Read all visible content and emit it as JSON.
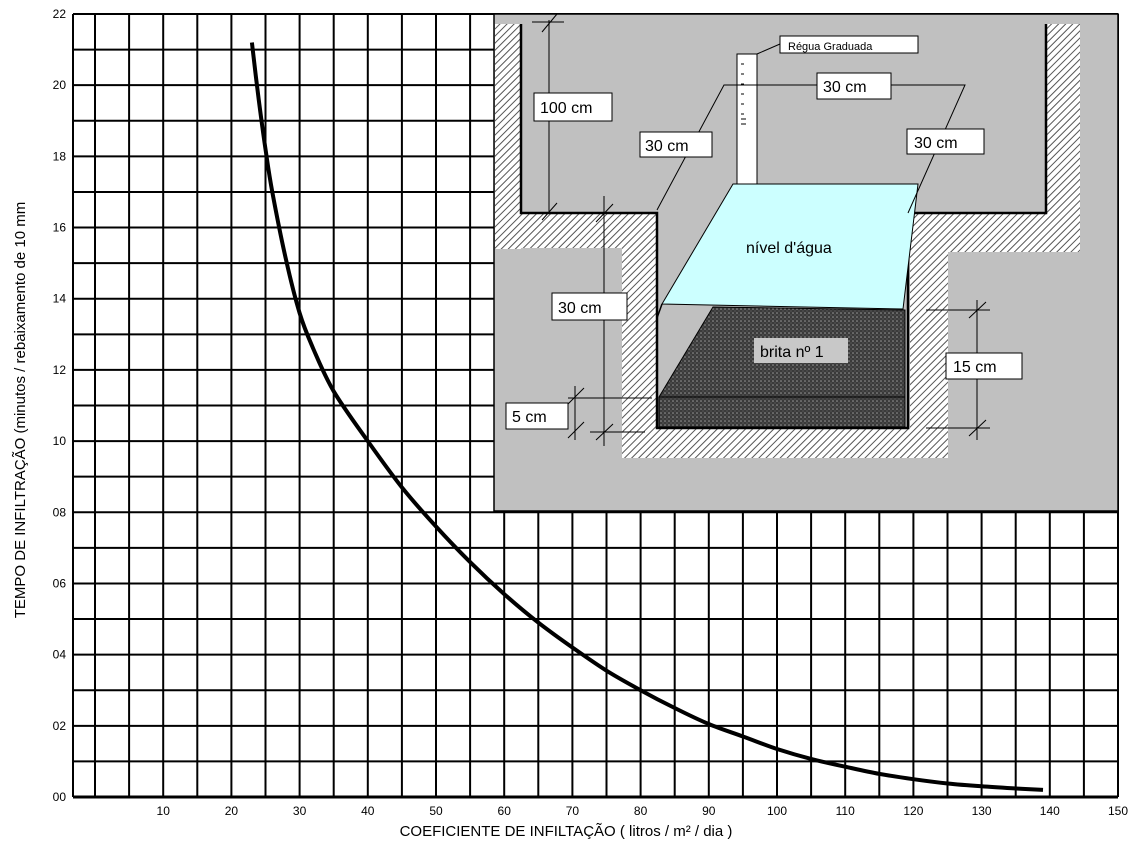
{
  "chart_data": {
    "type": "line",
    "title": "",
    "xlabel": "COEFICIENTE DE  INFILTAÇÃO   ( litros / m² /  dia   )",
    "ylabel": "TEMPO DE INFILTRAÇÃO (minutos / rebaixamento de  10 mm",
    "xlim": [
      0,
      150
    ],
    "ylim": [
      0,
      22
    ],
    "x_ticks": [
      "10",
      "20",
      "30",
      "40",
      "50",
      "60",
      "70",
      "80",
      "90",
      "100",
      "110",
      "120",
      "130",
      "140",
      "150"
    ],
    "y_ticks": [
      "00",
      "02",
      "04",
      "06",
      "08",
      "10",
      "12",
      "14",
      "16",
      "18",
      "20",
      "22"
    ],
    "grid": true,
    "series": [
      {
        "x": [
          23,
          24,
          25,
          26,
          28,
          30,
          32,
          35,
          40,
          45,
          50,
          55,
          60,
          65,
          70,
          75,
          80,
          85,
          90,
          95,
          100,
          105,
          110,
          115,
          120,
          125,
          130,
          135,
          139
        ],
        "values": [
          21.2,
          19.6,
          18.2,
          17.0,
          15.1,
          13.6,
          12.6,
          11.4,
          10.0,
          8.7,
          7.6,
          6.6,
          5.7,
          4.9,
          4.2,
          3.55,
          3.0,
          2.5,
          2.05,
          1.7,
          1.35,
          1.07,
          0.85,
          0.65,
          0.5,
          0.38,
          0.3,
          0.24,
          0.2
        ]
      }
    ]
  },
  "inset": {
    "ruler_label": "Régua  Graduada",
    "water_label": "nível d'água",
    "gravel_label": "brita nº 1",
    "dim_100": "100 cm",
    "dim_30_top": "30 cm",
    "dim_30_left": "30 cm",
    "dim_30_right": "30 cm",
    "dim_30_depth": "30 cm",
    "dim_5": "5 cm",
    "dim_15": "15 cm",
    "colors": {
      "background": "#c0c0c0",
      "water": "#ccffff",
      "gravel": "#4a4a4a"
    }
  }
}
